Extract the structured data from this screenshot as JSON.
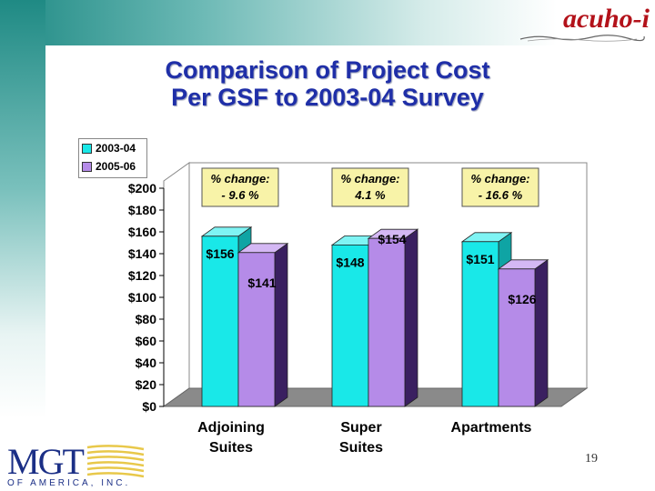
{
  "slide": {
    "title_line1": "Comparison of Project Cost",
    "title_line2": "Per GSF to 2003-04 Survey",
    "page_number": "19",
    "header_logo": "acuho-i",
    "footer_logo": "MGT",
    "footer_logo_sub": "OF AMERICA, INC."
  },
  "colors": {
    "series_2003_04": "#19e8e8",
    "series_2005_06": "#b58be8",
    "title": "#1f2fa8",
    "callout_bg": "#f8f3a8",
    "banner": "#1f8a84"
  },
  "chart_data": {
    "type": "bar",
    "title": "Comparison of Project Cost Per GSF to 2003-04 Survey",
    "xlabel": "",
    "ylabel": "",
    "categories": [
      "Adjoining Suites",
      "Super Suites",
      "Apartments"
    ],
    "category_lines": [
      [
        "Adjoining",
        "Suites"
      ],
      [
        "Super",
        "Suites"
      ],
      [
        "Apartments"
      ]
    ],
    "series": [
      {
        "name": "2003-04",
        "values": [
          156,
          148,
          151
        ],
        "labels": [
          "$156",
          "$148",
          "$151"
        ]
      },
      {
        "name": "2005-06",
        "values": [
          141,
          154,
          126
        ],
        "labels": [
          "$141",
          "$154",
          "$126"
        ]
      }
    ],
    "ylim": [
      0,
      200
    ],
    "yticks": [
      0,
      20,
      40,
      60,
      80,
      100,
      120,
      140,
      160,
      180,
      200
    ],
    "ytick_labels": [
      "$0",
      "$20",
      "$40",
      "$60",
      "$80",
      "$100",
      "$120",
      "$140",
      "$160",
      "$180",
      "$200"
    ],
    "legend_position": "top-left",
    "grid": false,
    "three_d": true,
    "annotations": [
      {
        "category": "Adjoining Suites",
        "line1": "% change:",
        "line2": "- 9.6 %"
      },
      {
        "category": "Super Suites",
        "line1": "% change:",
        "line2": "4.1 %"
      },
      {
        "category": "Apartments",
        "line1": "% change:",
        "line2": "- 16.6 %"
      }
    ]
  }
}
